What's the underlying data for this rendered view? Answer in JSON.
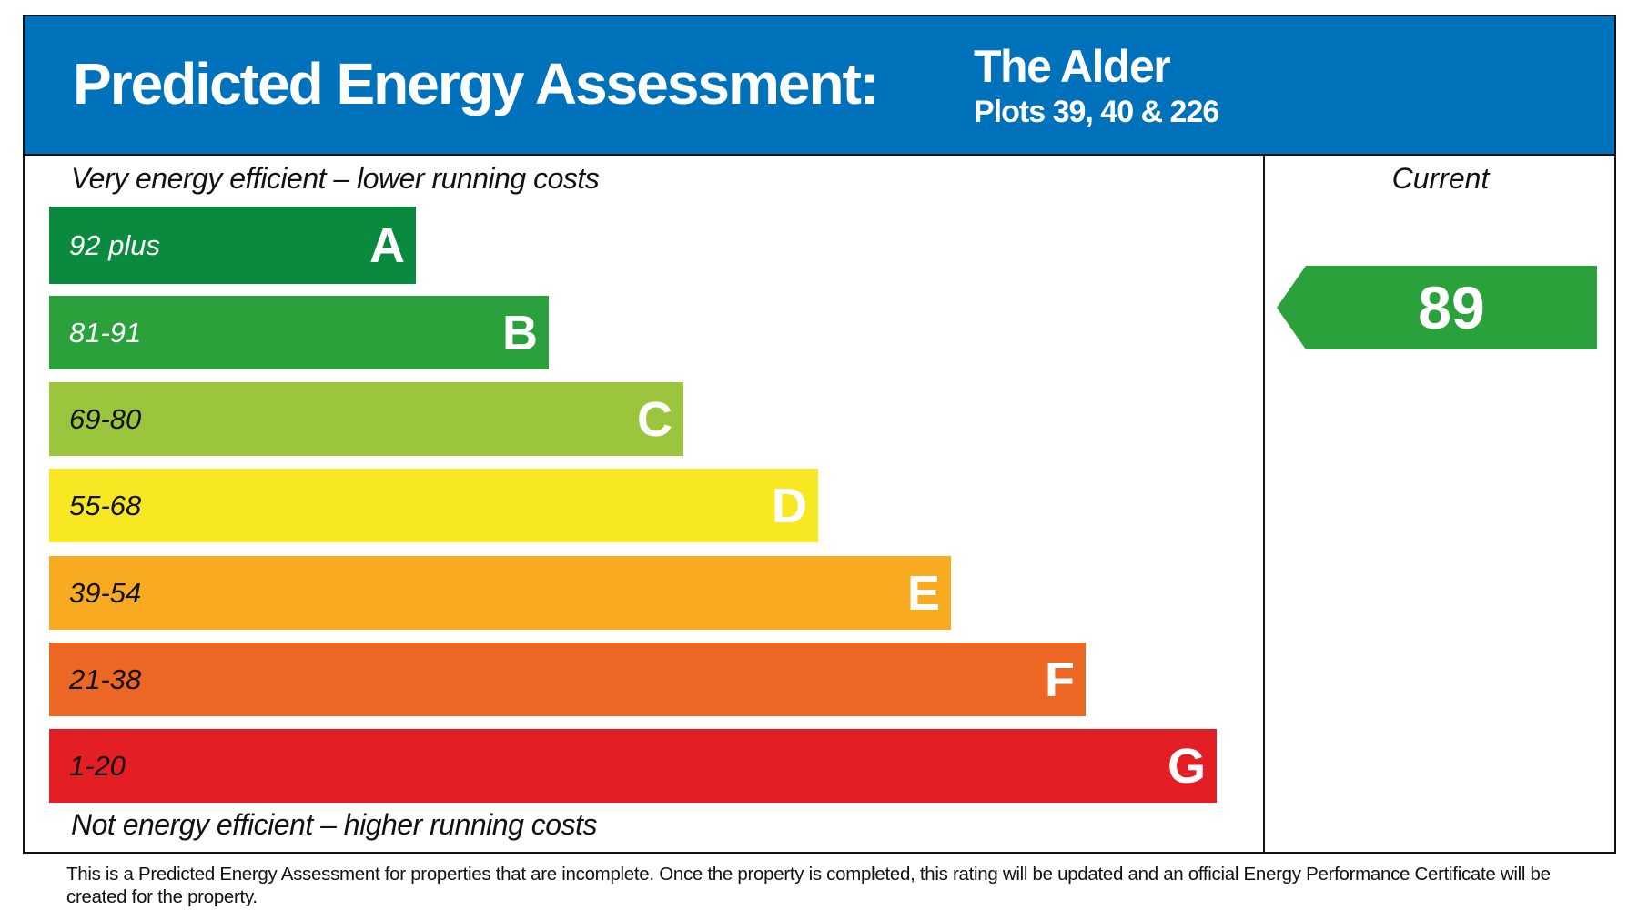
{
  "header": {
    "title": "Predicted Energy Assessment:",
    "property": "The Alder",
    "plots": "Plots 39, 40 & 226"
  },
  "top_note": "Very energy efficient – lower running costs",
  "bottom_note": "Not energy efficient – higher running costs",
  "bands": [
    {
      "range": "92 plus",
      "letter": "A",
      "color": "#0a8a3f",
      "text_color": "#ffffff"
    },
    {
      "range": "81-91",
      "letter": "B",
      "color": "#2ba13b",
      "text_color": "#ffffff"
    },
    {
      "range": "69-80",
      "letter": "C",
      "color": "#9bc53d",
      "text_color": "#111111"
    },
    {
      "range": "55-68",
      "letter": "D",
      "color": "#f8e824",
      "text_color": "#111111"
    },
    {
      "range": "39-54",
      "letter": "E",
      "color": "#f8ab20",
      "text_color": "#111111"
    },
    {
      "range": "21-38",
      "letter": "F",
      "color": "#ec6723",
      "text_color": "#111111"
    },
    {
      "range": "1-20",
      "letter": "G",
      "color": "#e31e24",
      "text_color": "#111111"
    }
  ],
  "current": {
    "label": "Current",
    "value": "89",
    "color": "#2ba13b"
  },
  "colors": {
    "header": "#0072bc"
  },
  "footer": "This is a Predicted Energy Assessment for properties that are incomplete. Once the property is completed, this rating will be updated and an official Energy Performance Certificate will be created for the property."
}
